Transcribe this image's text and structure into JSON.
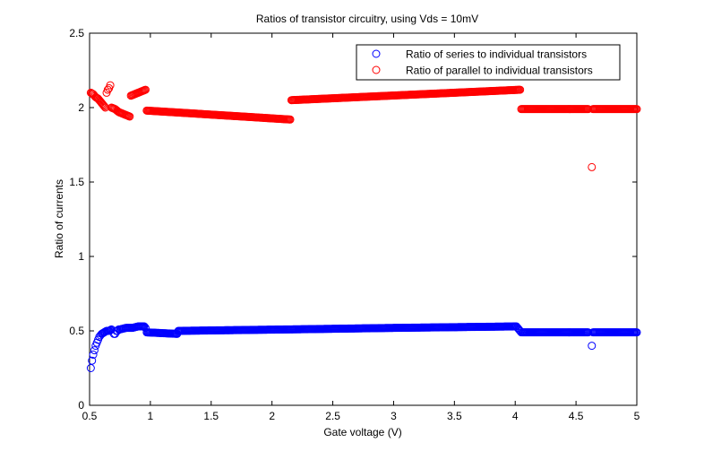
{
  "chart_data": {
    "type": "scatter",
    "title": "Ratios of transistor circuitry, using Vds = 10mV",
    "xlabel": "Gate voltage (V)",
    "ylabel": "Ratio of currents",
    "xlim": [
      0.5,
      5
    ],
    "ylim": [
      0,
      2.5
    ],
    "xticks": [
      0.5,
      1,
      1.5,
      2,
      2.5,
      3,
      3.5,
      4,
      4.5,
      5
    ],
    "xtick_labels": [
      "0.5",
      "1",
      "1.5",
      "2",
      "2.5",
      "3",
      "3.5",
      "4",
      "4.5",
      "5"
    ],
    "yticks": [
      0,
      0.5,
      1,
      1.5,
      2,
      2.5
    ],
    "ytick_labels": [
      "0",
      "0.5",
      "1",
      "1.5",
      "2",
      "2.5"
    ],
    "grid": false,
    "legend_position": "top-right",
    "marker": "open-circle",
    "series": [
      {
        "name": "Ratio of series to individual transistors",
        "color": "#0000ff",
        "segments": [
          {
            "x": [
              0.51,
              0.52,
              0.53,
              0.54,
              0.55,
              0.56,
              0.57,
              0.58,
              0.59,
              0.6,
              0.62,
              0.64,
              0.66,
              0.68
            ],
            "y": [
              0.25,
              0.3,
              0.34,
              0.37,
              0.4,
              0.42,
              0.44,
              0.46,
              0.47,
              0.48,
              0.49,
              0.5,
              0.5,
              0.51
            ]
          },
          {
            "x": [
              0.7,
              0.71,
              0.72,
              0.73,
              0.74
            ],
            "y": [
              0.48,
              0.48,
              0.5,
              0.5,
              0.51
            ]
          },
          {
            "x": [
              0.75,
              0.8,
              0.85,
              0.9,
              0.95,
              0.96
            ],
            "y": [
              0.51,
              0.52,
              0.52,
              0.53,
              0.53,
              0.52
            ]
          },
          {
            "x": [
              0.97,
              1.22
            ],
            "y": [
              0.49,
              0.48
            ]
          },
          {
            "x": [
              1.23,
              2.15
            ],
            "y": [
              0.5,
              0.51
            ]
          },
          {
            "x": [
              2.16,
              3.0,
              4.01
            ],
            "y": [
              0.51,
              0.52,
              0.53
            ]
          },
          {
            "x": [
              4.02,
              4.05
            ],
            "y": [
              0.52,
              0.49
            ]
          },
          {
            "x": [
              4.06,
              4.6
            ],
            "y": [
              0.49,
              0.49
            ]
          },
          {
            "x": [
              4.64,
              5.0
            ],
            "y": [
              0.49,
              0.49
            ]
          }
        ],
        "points": [
          {
            "x": 4.63,
            "y": 0.4
          }
        ]
      },
      {
        "name": "Ratio of parallel to individual transistors",
        "color": "#ff0000",
        "segments": [
          {
            "x": [
              0.51,
              0.53,
              0.55,
              0.57,
              0.59,
              0.61,
              0.63
            ],
            "y": [
              2.1,
              2.09,
              2.07,
              2.06,
              2.04,
              2.02,
              2.0
            ]
          },
          {
            "x": [
              0.64,
              0.65,
              0.66,
              0.67
            ],
            "y": [
              2.1,
              2.12,
              2.13,
              2.15
            ]
          },
          {
            "x": [
              0.68,
              0.71,
              0.74,
              0.77,
              0.8,
              0.83
            ],
            "y": [
              2.0,
              1.99,
              1.97,
              1.96,
              1.95,
              1.94
            ]
          },
          {
            "x": [
              0.84,
              0.87,
              0.9,
              0.93,
              0.96
            ],
            "y": [
              2.08,
              2.09,
              2.1,
              2.11,
              2.12
            ]
          },
          {
            "x": [
              0.97,
              2.15
            ],
            "y": [
              1.98,
              1.92
            ]
          },
          {
            "x": [
              2.16,
              4.04
            ],
            "y": [
              2.05,
              2.12
            ]
          },
          {
            "x": [
              4.05,
              4.6
            ],
            "y": [
              1.99,
              1.99
            ]
          },
          {
            "x": [
              4.64,
              5.0
            ],
            "y": [
              1.99,
              1.99
            ]
          }
        ],
        "points": [
          {
            "x": 4.63,
            "y": 1.6
          }
        ]
      }
    ]
  }
}
